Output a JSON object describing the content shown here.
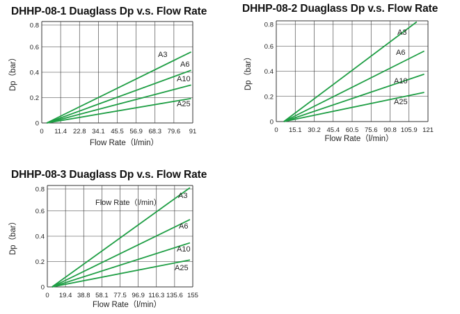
{
  "chart_data": [
    {
      "type": "line",
      "title": "DHHP-08-1 Duaglass Dp v.s. Flow Rate",
      "xlabel": "Flow Rate（l/min）",
      "ylabel": "Dp（bar）",
      "xlim": [
        0,
        91
      ],
      "ylim": [
        0,
        0.8
      ],
      "x_ticks": [
        "0",
        "11.4",
        "22.8",
        "34.1",
        "45.5",
        "56.9",
        "68.3",
        "79.6",
        "91"
      ],
      "y_ticks": [
        "0",
        "0.2",
        "0.4",
        "0.6",
        "0.8"
      ],
      "grid": true,
      "annotation": "",
      "series": [
        {
          "name": "A3",
          "x": [
            3,
            90
          ],
          "y": [
            0,
            0.58
          ]
        },
        {
          "name": "A6",
          "x": [
            3,
            90
          ],
          "y": [
            0,
            0.43
          ]
        },
        {
          "name": "A10",
          "x": [
            3,
            90
          ],
          "y": [
            0,
            0.31
          ]
        },
        {
          "name": "A25",
          "x": [
            3,
            90
          ],
          "y": [
            0,
            0.2
          ]
        }
      ]
    },
    {
      "type": "line",
      "title": "DHHP-08-2 Duaglass Dp v.s. Flow Rate",
      "xlabel": "Flow Rate（l/min）",
      "ylabel": "Dp（bar）",
      "xlim": [
        0,
        121
      ],
      "ylim": [
        0,
        0.8
      ],
      "x_ticks": [
        "0",
        "15.1",
        "30.2",
        "45.4",
        "60.5",
        "75.6",
        "90.8",
        "105.9",
        "121"
      ],
      "y_ticks": [
        "0",
        "0.2",
        "0.4",
        "0.6",
        "0.8"
      ],
      "grid": true,
      "annotation": "",
      "series": [
        {
          "name": "A3",
          "x": [
            6,
            112
          ],
          "y": [
            0,
            0.82
          ]
        },
        {
          "name": "A6",
          "x": [
            6,
            118
          ],
          "y": [
            0,
            0.58
          ]
        },
        {
          "name": "A10",
          "x": [
            6,
            118
          ],
          "y": [
            0,
            0.39
          ]
        },
        {
          "name": "A25",
          "x": [
            6,
            118
          ],
          "y": [
            0,
            0.24
          ]
        }
      ]
    },
    {
      "type": "line",
      "title": "DHHP-08-3 Duaglass Dp v.s. Flow Rate",
      "xlabel": "Flow Rate（l/min）",
      "ylabel": "Dp（bar）",
      "xlim": [
        0,
        155
      ],
      "ylim": [
        0,
        0.8
      ],
      "x_ticks": [
        "0",
        "19.4",
        "38.8",
        "58.1",
        "77.5",
        "96.9",
        "116.3",
        "135.6",
        "155"
      ],
      "y_ticks": [
        "0",
        "0.2",
        "0.4",
        "0.6",
        "0.8"
      ],
      "grid": true,
      "annotation": "Flow Rate（l/min）",
      "series": [
        {
          "name": "A3",
          "x": [
            5,
            152
          ],
          "y": [
            0,
            0.81
          ]
        },
        {
          "name": "A6",
          "x": [
            5,
            152
          ],
          "y": [
            0,
            0.55
          ]
        },
        {
          "name": "A10",
          "x": [
            5,
            152
          ],
          "y": [
            0,
            0.36
          ]
        },
        {
          "name": "A25",
          "x": [
            5,
            152
          ],
          "y": [
            0,
            0.22
          ]
        }
      ]
    }
  ],
  "colors": {
    "series_line": "#1e9e44",
    "grid_line": "#333333",
    "axis_text": "#222222"
  }
}
